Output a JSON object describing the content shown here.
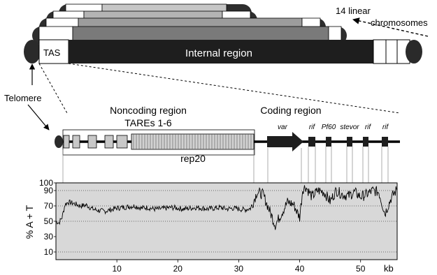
{
  "chromosomes": {
    "count_label": "14 linear",
    "count_label_2": "chromosomes",
    "internal_label": "Internal region",
    "tas_label": "TAS",
    "telomere_label": "Telomere"
  },
  "gene_map": {
    "noncoding_title": "Noncoding region",
    "tares_label": "TAREs 1-6",
    "rep20_label": "rep20",
    "coding_title": "Coding region",
    "genes": [
      "var",
      "rif",
      "Pf60",
      "stevor",
      "rif",
      "rif"
    ]
  },
  "at_plot": {
    "ylabel": "% A + T",
    "yticks": [
      "10",
      "30",
      "50",
      "70",
      "90",
      "100"
    ],
    "xticks": [
      "10",
      "20",
      "30",
      "40",
      "50"
    ],
    "xunit": "kb"
  },
  "chart_data": {
    "type": "line",
    "title": "",
    "xlabel": "kb",
    "ylabel": "% A + T",
    "xlim": [
      0,
      56
    ],
    "ylim": [
      0,
      100
    ],
    "x_ticks": [
      10,
      20,
      30,
      40,
      50
    ],
    "y_ticks": [
      10,
      30,
      50,
      70,
      90,
      100
    ],
    "grid": "dotted horizontal at 10, 50, 70, 90",
    "series": [
      {
        "x": [
          0,
          0.5,
          1,
          1.5,
          2,
          3,
          4,
          5,
          6,
          7,
          8,
          9,
          10,
          11,
          12,
          13,
          14,
          15,
          16,
          17,
          18,
          19,
          20,
          21,
          22,
          23,
          24,
          25,
          26,
          27,
          28,
          29,
          30,
          31,
          32,
          33,
          34,
          35,
          36,
          37,
          38,
          39,
          40,
          40.5,
          41,
          42,
          43,
          44,
          45,
          46,
          47,
          48,
          49,
          50,
          51,
          52,
          53,
          54,
          55,
          56
        ],
        "values": [
          50,
          48,
          55,
          72,
          75,
          73,
          70,
          71,
          66,
          64,
          63,
          65,
          67,
          68,
          69,
          70,
          67,
          68,
          66,
          66,
          67,
          68,
          67,
          66,
          67,
          68,
          67,
          66,
          67,
          68,
          66,
          67,
          66,
          65,
          67,
          88,
          85,
          65,
          45,
          60,
          75,
          72,
          55,
          92,
          95,
          82,
          90,
          88,
          76,
          90,
          85,
          83,
          88,
          82,
          85,
          90,
          88,
          60,
          80,
          92
        ]
      }
    ]
  }
}
